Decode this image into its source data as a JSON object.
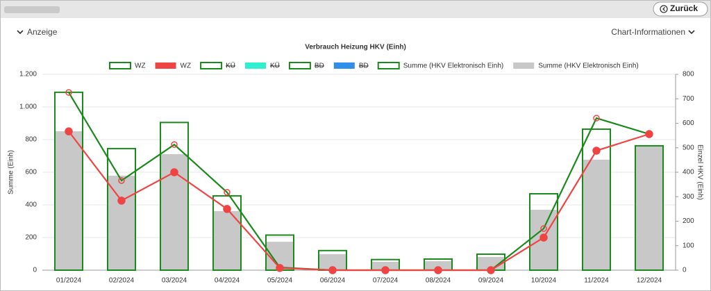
{
  "back_button": "Zurück",
  "toggles": [
    "Anzeige",
    "Chart-Informationen"
  ],
  "chart_data": {
    "type": "combo",
    "title": "Verbrauch Heizung HKV (Einh)",
    "y_label": "Summe (Einh)",
    "y2_label": "Einzel HKV (Einh)",
    "categories": [
      "01/2024",
      "02/2024",
      "03/2024",
      "04/2024",
      "05/2024",
      "06/2024",
      "07/2024",
      "08/2024",
      "09/2024",
      "10/2024",
      "11/2024",
      "12/2024"
    ],
    "ylim": [
      0,
      1200
    ],
    "yticks": [
      0,
      200,
      400,
      600,
      800,
      {
        "value": 1000,
        "label": "1.000"
      },
      {
        "value": 1200,
        "label": "1.200"
      }
    ],
    "y2lim": [
      0,
      800
    ],
    "y2ticks": [
      0,
      100,
      200,
      300,
      400,
      500,
      600,
      700,
      800
    ],
    "grid": true,
    "series": [
      {
        "name": "WZ",
        "kind": "line",
        "style": "outline",
        "color": "#1a8a1a",
        "marker": "hollow",
        "marker_color": "#ef4444",
        "axis": "y2",
        "values": [
          726,
          366,
          513,
          318,
          11,
          0,
          0,
          0,
          0,
          170,
          621,
          556
        ]
      },
      {
        "name": "WZ",
        "kind": "line",
        "style": "fill",
        "color": "#ef4444",
        "marker": "filled",
        "marker_color": "#ef4444",
        "axis": "y2",
        "values": [
          567,
          284,
          400,
          250,
          9,
          0,
          0,
          0,
          0,
          133,
          488,
          556
        ]
      },
      {
        "name": "KÜ",
        "kind": "line",
        "style": "outline",
        "color": "#1a8a1a",
        "hidden": true
      },
      {
        "name": "KÜ",
        "kind": "line",
        "style": "fill",
        "color": "#2ef0d0",
        "hidden": true
      },
      {
        "name": "BD",
        "kind": "line",
        "style": "outline",
        "color": "#1a8a1a",
        "hidden": true
      },
      {
        "name": "BD",
        "kind": "line",
        "style": "fill",
        "color": "#2f8fe8",
        "hidden": true
      },
      {
        "name": "Summe (HKV Elektronisch Einh)",
        "kind": "bar",
        "style": "outline",
        "color": "#1a8a1a",
        "axis": "y",
        "values": [
          1090,
          745,
          905,
          455,
          215,
          120,
          65,
          68,
          98,
          468,
          864,
          762
        ]
      },
      {
        "name": "Summe (HKV Elektronisch Einh)",
        "kind": "bar",
        "style": "fill",
        "color": "#c8c8c8",
        "axis": "y",
        "values": [
          851,
          579,
          711,
          362,
          174,
          98,
          51,
          55,
          81,
          370,
          677,
          762
        ]
      }
    ]
  }
}
